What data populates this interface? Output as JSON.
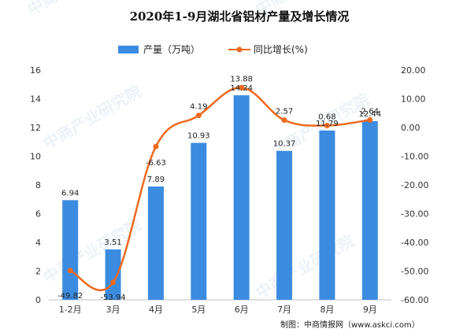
{
  "chart_data": {
    "type": "bar+line",
    "title": "2020年1-9月湖北省铝材产量及增长情况",
    "categories": [
      "1-2月",
      "3月",
      "4月",
      "5月",
      "6月",
      "7月",
      "8月",
      "9月"
    ],
    "series": [
      {
        "name": "产量（万吨）",
        "type": "bar",
        "axis": "left",
        "values": [
          6.94,
          3.51,
          7.89,
          10.93,
          14.24,
          10.37,
          11.79,
          12.44
        ],
        "labels": [
          "6.94",
          "3.51",
          "7.89",
          "10.93",
          "14.24",
          "10.37",
          "11.79",
          "12.44"
        ]
      },
      {
        "name": "同比增长(%)",
        "type": "line",
        "axis": "right",
        "values": [
          -49.82,
          -53.94,
          -6.63,
          4.19,
          13.88,
          2.57,
          0.68,
          2.64
        ],
        "labels": [
          "-49.82",
          "-53.94",
          "-6.63",
          "4.19",
          "13.88",
          "2.57",
          "0.68",
          "2.64"
        ]
      }
    ],
    "y_left": {
      "min": 0,
      "max": 16,
      "step": 2,
      "ticks": [
        "0",
        "2",
        "4",
        "6",
        "8",
        "10",
        "12",
        "14",
        "16"
      ]
    },
    "y_right": {
      "min": -60,
      "max": 20,
      "step": 10,
      "ticks": [
        "-60.00",
        "-50.00",
        "-40.00",
        "-30.00",
        "-20.00",
        "-10.00",
        "0.00",
        "10.00",
        "20.00"
      ]
    },
    "grid": false,
    "legend_position": "top-center",
    "colors": {
      "bar": "#3b8ce0",
      "line": "#ee6a1f"
    },
    "source": "制图：中商情报网（www.askci.com）",
    "watermark": "中商产业研究院"
  }
}
